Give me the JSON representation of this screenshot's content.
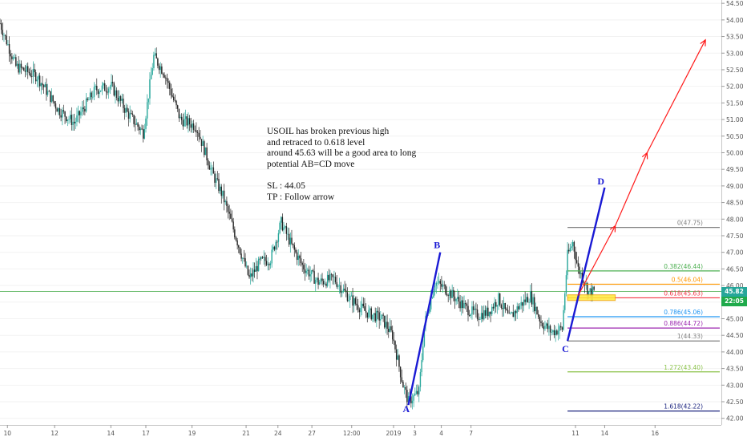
{
  "chart_data": {
    "type": "candlestick",
    "symbol_hint": "USOIL",
    "ylim": [
      41.8,
      54.6
    ],
    "y_ticks": [
      42.0,
      42.5,
      43.0,
      43.5,
      44.0,
      44.5,
      45.0,
      45.5,
      46.0,
      46.5,
      47.0,
      47.5,
      48.0,
      48.5,
      49.0,
      49.5,
      50.0,
      50.5,
      51.0,
      51.5,
      52.0,
      52.5,
      53.0,
      53.5,
      54.0,
      54.5
    ],
    "x_tick_labels": [
      "10",
      "12",
      "14",
      "17",
      "19",
      "21",
      "24",
      "27",
      "12:00",
      "2019",
      "3",
      "4",
      "7",
      "11",
      "14",
      "16"
    ],
    "price_path": [
      {
        "t": 0,
        "p": 53.9
      },
      {
        "t": 3,
        "p": 52.6
      },
      {
        "t": 7,
        "p": 52.3
      },
      {
        "t": 11,
        "p": 51.3
      },
      {
        "t": 14,
        "p": 50.9
      },
      {
        "t": 18,
        "p": 51.9
      },
      {
        "t": 21,
        "p": 52.0
      },
      {
        "t": 24,
        "p": 51.2
      },
      {
        "t": 27,
        "p": 50.6
      },
      {
        "t": 29,
        "p": 52.9
      },
      {
        "t": 31,
        "p": 52.4
      },
      {
        "t": 34,
        "p": 51.0
      },
      {
        "t": 37,
        "p": 50.8
      },
      {
        "t": 40,
        "p": 49.4
      },
      {
        "t": 42,
        "p": 48.7
      },
      {
        "t": 45,
        "p": 47.2
      },
      {
        "t": 47,
        "p": 46.2
      },
      {
        "t": 49,
        "p": 46.7
      },
      {
        "t": 51,
        "p": 46.8
      },
      {
        "t": 53,
        "p": 47.9
      },
      {
        "t": 55,
        "p": 47.2
      },
      {
        "t": 57,
        "p": 46.6
      },
      {
        "t": 60,
        "p": 46.1
      },
      {
        "t": 63,
        "p": 46.2
      },
      {
        "t": 66,
        "p": 45.6
      },
      {
        "t": 69,
        "p": 45.2
      },
      {
        "t": 72,
        "p": 45.0
      },
      {
        "t": 74,
        "p": 44.5
      },
      {
        "t": 76,
        "p": 43.0
      },
      {
        "t": 77,
        "p": 42.5
      },
      {
        "t": 79,
        "p": 42.8
      },
      {
        "t": 80,
        "p": 44.8
      },
      {
        "t": 82,
        "p": 46.1
      },
      {
        "t": 84,
        "p": 45.9
      },
      {
        "t": 86,
        "p": 45.6
      },
      {
        "t": 88,
        "p": 45.3
      },
      {
        "t": 90,
        "p": 45.1
      },
      {
        "t": 92,
        "p": 45.2
      },
      {
        "t": 94,
        "p": 45.6
      },
      {
        "t": 96,
        "p": 45.0
      },
      {
        "t": 98,
        "p": 45.4
      },
      {
        "t": 100,
        "p": 45.7
      },
      {
        "t": 102,
        "p": 44.9
      },
      {
        "t": 104,
        "p": 44.6
      },
      {
        "t": 106,
        "p": 44.7
      },
      {
        "t": 107,
        "p": 46.9
      },
      {
        "t": 108,
        "p": 47.3
      },
      {
        "t": 109,
        "p": 46.5
      },
      {
        "t": 110,
        "p": 46.2
      },
      {
        "t": 111,
        "p": 45.8
      },
      {
        "t": 112,
        "p": 45.82
      }
    ],
    "current_price": "45.82",
    "current_time": "22:05",
    "fib_levels": [
      {
        "label": "0(47.75)",
        "value": 47.75,
        "color": "#808080"
      },
      {
        "label": "0.382(46.44)",
        "value": 46.44,
        "color": "#4caf50"
      },
      {
        "label": "0.5(46.04)",
        "value": 46.04,
        "color": "#ff9800"
      },
      {
        "label": "0.618(45.63)",
        "value": 45.63,
        "color": "#f23645"
      },
      {
        "label": "0.786(45.06)",
        "value": 45.06,
        "color": "#2196f3"
      },
      {
        "label": "0.886(44.72)",
        "value": 44.72,
        "color": "#9c27b0"
      },
      {
        "label": "1(44.33)",
        "value": 44.33,
        "color": "#808080"
      },
      {
        "label": "1.272(43.40)",
        "value": 43.4,
        "color": "#8bc34a"
      },
      {
        "label": "1.618(42.22)",
        "value": 42.22,
        "color": "#1a237e"
      }
    ],
    "abcd_points": [
      {
        "name": "A",
        "t": 77,
        "p": 42.4
      },
      {
        "name": "B",
        "t": 83,
        "p": 47.0
      },
      {
        "name": "C",
        "t": 107,
        "p": 44.33
      },
      {
        "name": "D",
        "t": 114,
        "p": 48.95
      }
    ],
    "projection_arrows": [
      {
        "from": {
          "t": 109,
          "p": 45.7
        },
        "to": {
          "t": 116,
          "p": 47.8
        }
      },
      {
        "from": {
          "t": 116,
          "p": 47.8
        },
        "to": {
          "t": 122,
          "p": 50.0
        }
      },
      {
        "from": {
          "t": 122,
          "p": 50.0
        },
        "to": {
          "t": 133,
          "p": 53.4
        }
      }
    ],
    "horizontal_line": {
      "value": 45.82,
      "color": "#4caf50"
    },
    "entry_zone": {
      "t_start": 107,
      "t_end": 116,
      "p_low": 45.55,
      "p_high": 45.72
    },
    "colors": {
      "up": "#26a69a",
      "down": "#222222",
      "abcd": "#1a1ad4",
      "arrow": "#ff1a1a",
      "price_tag": "#26a69a",
      "time_tag": "#1faa4b"
    }
  },
  "annotation": {
    "lines": [
      "USOIL has broken previous high",
      "and retraced to 0.618 level",
      "around 45.63 will be a good area to long",
      "potential AB=CD move",
      "",
      "SL : 44.05",
      "TP : Follow arrow"
    ]
  }
}
